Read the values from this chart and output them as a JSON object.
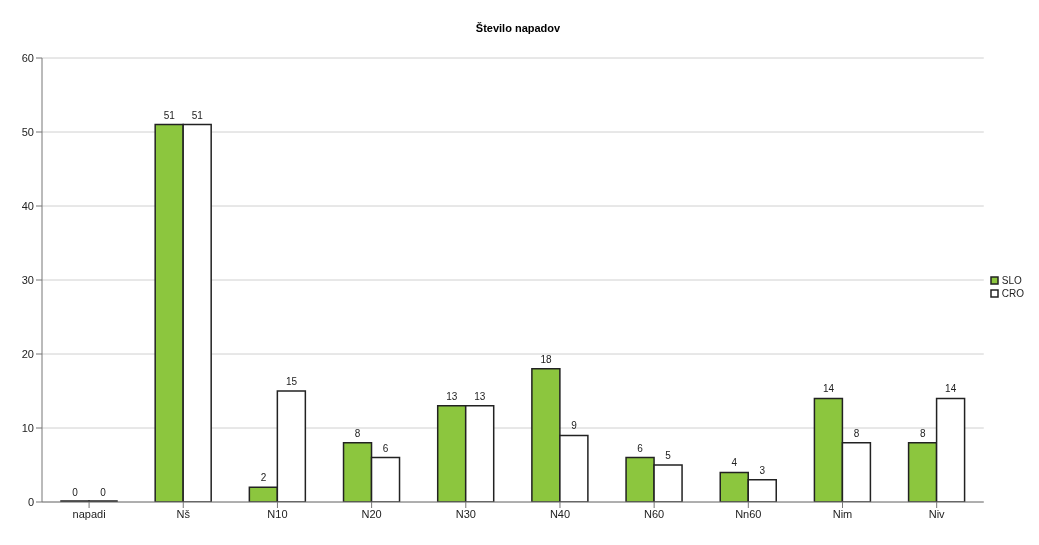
{
  "chart_data": {
    "type": "bar",
    "title": "Število napadov",
    "categories": [
      "napadi",
      "Nš",
      "N10",
      "N20",
      "N30",
      "N40",
      "N60",
      "Nn60",
      "Nim",
      "Niv"
    ],
    "series": [
      {
        "name": "SLO",
        "color": "#8cc63e",
        "values": [
          0,
          51,
          2,
          8,
          13,
          18,
          6,
          4,
          14,
          8
        ]
      },
      {
        "name": "CRO",
        "color": "#ffffff",
        "values": [
          0,
          51,
          15,
          6,
          13,
          9,
          5,
          3,
          8,
          14
        ]
      }
    ],
    "ylim": [
      0,
      60
    ],
    "yticks": [
      0,
      10,
      20,
      30,
      40,
      50,
      60
    ],
    "grid": "y",
    "legend": "right",
    "data_labels": true
  }
}
